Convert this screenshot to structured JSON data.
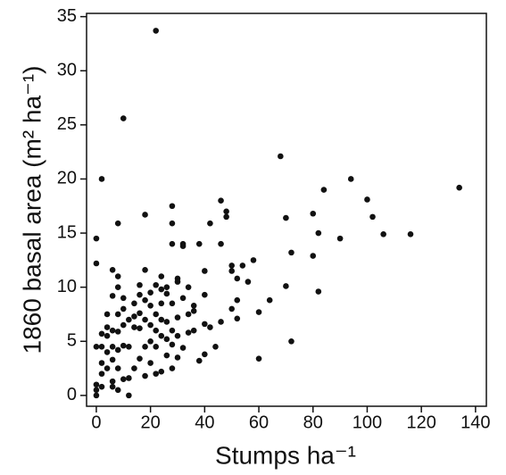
{
  "chart_data": {
    "type": "scatter",
    "x_label": "Stumps ha⁻¹",
    "y_label": "1860 basal area (m² ha⁻¹)",
    "color": "#111111",
    "xlim": [
      -3.6,
      144
    ],
    "ylim": [
      -1,
      35.3
    ],
    "xticks": [
      0,
      20,
      40,
      60,
      80,
      100,
      120,
      140
    ],
    "yticks": [
      0,
      5,
      10,
      15,
      20,
      25,
      30,
      35
    ],
    "x": [
      22,
      10,
      2,
      68,
      94,
      134,
      84,
      100,
      46,
      28,
      48,
      48,
      18,
      8,
      28,
      42,
      70,
      80,
      102,
      0,
      82,
      90,
      106,
      116,
      28,
      32,
      32,
      38,
      46,
      72,
      80,
      0,
      58,
      54,
      50,
      50,
      40,
      18,
      6,
      8,
      24,
      30,
      52,
      56,
      70,
      60,
      64,
      82,
      52,
      50,
      52,
      60,
      72,
      38,
      40,
      44,
      42,
      46,
      40,
      36,
      36,
      40,
      34,
      30,
      32,
      28,
      26,
      22,
      24,
      20,
      16,
      14,
      10,
      6,
      8,
      4,
      2,
      0,
      0,
      0,
      0,
      2,
      2,
      2,
      4,
      4,
      4,
      6,
      6,
      6,
      6,
      8,
      8,
      8,
      8,
      10,
      10,
      10,
      12,
      12,
      12,
      12,
      14,
      14,
      14,
      16,
      16,
      16,
      18,
      18,
      18,
      20,
      20,
      20,
      20,
      22,
      22,
      22,
      22,
      24,
      24,
      24,
      26,
      26,
      26,
      28,
      28,
      28,
      30,
      30,
      30,
      32,
      34,
      36,
      34,
      2,
      4,
      10,
      8,
      6,
      16,
      18,
      24,
      26
    ],
    "y": [
      33.7,
      25.6,
      20,
      22.1,
      20,
      19.2,
      19,
      18.1,
      18,
      17.5,
      17,
      16.5,
      16.7,
      15.9,
      15.9,
      15.9,
      16.4,
      16.8,
      16.5,
      14.5,
      15,
      14.5,
      14.9,
      14.9,
      14,
      14,
      13.8,
      14,
      14,
      13.2,
      12.9,
      12.2,
      12.5,
      12,
      11.5,
      12,
      11.5,
      11.6,
      11.6,
      11,
      11,
      10.8,
      10.8,
      10.5,
      10.1,
      7.7,
      8.8,
      9.6,
      8.8,
      8,
      7.1,
      3.4,
      5,
      3.2,
      3.8,
      4.5,
      6.3,
      6.8,
      6.6,
      7.8,
      8.3,
      9.3,
      10,
      10.5,
      9,
      8.5,
      9.4,
      10.2,
      9.8,
      9.5,
      9.3,
      8.5,
      9,
      9.2,
      10,
      7.5,
      5.7,
      4.5,
      1,
      0.5,
      0,
      0.8,
      2,
      3,
      2.5,
      4,
      5.5,
      4.5,
      3.3,
      1.3,
      0.8,
      0.5,
      2.5,
      4.2,
      5.9,
      6.5,
      4.6,
      1.5,
      0,
      1.6,
      4.5,
      7,
      2.5,
      6.3,
      7.3,
      3.4,
      6.2,
      7.6,
      1.8,
      4.5,
      7,
      3,
      5,
      6.5,
      8.3,
      2,
      4.5,
      6,
      7.5,
      2.2,
      5.5,
      8.5,
      3.7,
      5.2,
      6.8,
      2.5,
      4.7,
      6,
      3.5,
      5.5,
      7.2,
      4.4,
      5.8,
      6,
      7.5,
      4.5,
      6.3,
      8,
      7.5,
      6,
      10.2,
      8.8,
      7,
      10
    ]
  }
}
